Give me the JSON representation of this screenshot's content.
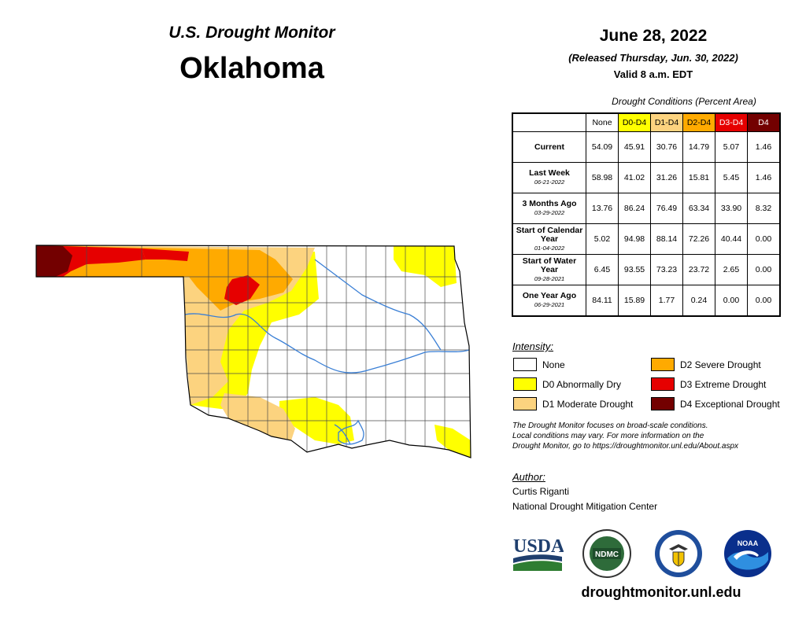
{
  "header": {
    "title": "U.S. Drought Monitor",
    "state": "Oklahoma",
    "date": "June 28, 2022",
    "released": "(Released Thursday, Jun. 30, 2022)",
    "valid": "Valid 8 a.m. EDT"
  },
  "table": {
    "caption": "Drought Conditions (Percent Area)",
    "columns": [
      {
        "label": "None",
        "color": "#ffffff"
      },
      {
        "label": "D0-D4",
        "color": "#ffff00"
      },
      {
        "label": "D1-D4",
        "color": "#fcd37f"
      },
      {
        "label": "D2-D4",
        "color": "#ffaa00"
      },
      {
        "label": "D3-D4",
        "color": "#e60000"
      },
      {
        "label": "D4",
        "color": "#730000"
      }
    ],
    "rows": [
      {
        "label": "Current",
        "sub": "",
        "values": [
          "54.09",
          "45.91",
          "30.76",
          "14.79",
          "5.07",
          "1.46"
        ]
      },
      {
        "label": "Last Week",
        "sub": "06-21-2022",
        "values": [
          "58.98",
          "41.02",
          "31.26",
          "15.81",
          "5.45",
          "1.46"
        ]
      },
      {
        "label": "3 Months Ago",
        "sub": "03-29-2022",
        "values": [
          "13.76",
          "86.24",
          "76.49",
          "63.34",
          "33.90",
          "8.32"
        ]
      },
      {
        "label": "Start of Calendar Year",
        "sub": "01-04-2022",
        "values": [
          "5.02",
          "94.98",
          "88.14",
          "72.26",
          "40.44",
          "0.00"
        ]
      },
      {
        "label": "Start of Water Year",
        "sub": "09-28-2021",
        "values": [
          "6.45",
          "93.55",
          "73.23",
          "23.72",
          "2.65",
          "0.00"
        ]
      },
      {
        "label": "One Year Ago",
        "sub": "06-29-2021",
        "values": [
          "84.11",
          "15.89",
          "1.77",
          "0.24",
          "0.00",
          "0.00"
        ]
      }
    ]
  },
  "legend": {
    "title": "Intensity:",
    "items": [
      {
        "label": "None",
        "color": "#ffffff"
      },
      {
        "label": "D0 Abnormally Dry",
        "color": "#ffff00"
      },
      {
        "label": "D1 Moderate Drought",
        "color": "#fcd37f"
      },
      {
        "label": "D2 Severe Drought",
        "color": "#ffaa00"
      },
      {
        "label": "D3 Extreme Drought",
        "color": "#e60000"
      },
      {
        "label": "D4 Exceptional Drought",
        "color": "#730000"
      }
    ]
  },
  "disclaimer": {
    "line1": "The Drought Monitor focuses on broad-scale conditions.",
    "line2": "Local conditions may vary. For more information on the",
    "line3": "Drought Monitor, go to https://droughtmonitor.unl.edu/About.aspx"
  },
  "author": {
    "title": "Author:",
    "name": "Curtis Riganti",
    "org": "National Drought Mitigation Center"
  },
  "logos": {
    "usda": "USDA",
    "ndmc": "NDMC",
    "noaa": "NOAA"
  },
  "website": "droughtmonitor.unl.edu",
  "colors": {
    "water": "#3a7fd5",
    "county_line": "#4a4a4a"
  }
}
